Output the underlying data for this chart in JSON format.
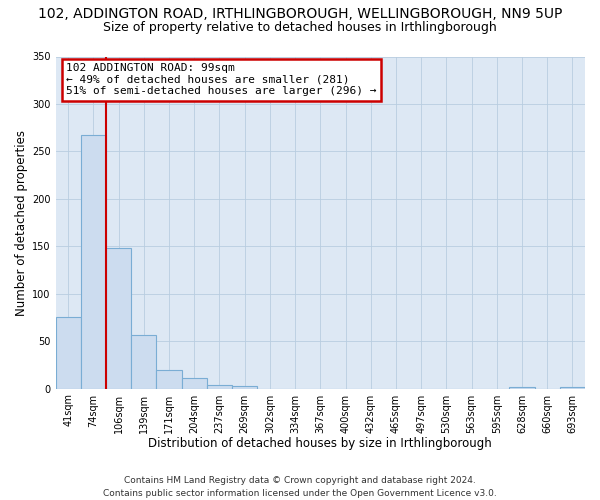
{
  "title": "102, ADDINGTON ROAD, IRTHLINGBOROUGH, WELLINGBOROUGH, NN9 5UP",
  "subtitle": "Size of property relative to detached houses in Irthlingborough",
  "xlabel": "Distribution of detached houses by size in Irthlingborough",
  "ylabel": "Number of detached properties",
  "bar_labels": [
    "41sqm",
    "74sqm",
    "106sqm",
    "139sqm",
    "171sqm",
    "204sqm",
    "237sqm",
    "269sqm",
    "302sqm",
    "334sqm",
    "367sqm",
    "400sqm",
    "432sqm",
    "465sqm",
    "497sqm",
    "530sqm",
    "563sqm",
    "595sqm",
    "628sqm",
    "660sqm",
    "693sqm"
  ],
  "bar_values": [
    75,
    267,
    148,
    57,
    20,
    11,
    4,
    3,
    0,
    0,
    0,
    0,
    0,
    0,
    0,
    0,
    0,
    0,
    2,
    0,
    2
  ],
  "bar_color": "#ccdcef",
  "bar_edge_color": "#7aadd4",
  "ylim": [
    0,
    350
  ],
  "yticks": [
    0,
    50,
    100,
    150,
    200,
    250,
    300,
    350
  ],
  "red_line_index": 2,
  "annotation_title": "102 ADDINGTON ROAD: 99sqm",
  "annotation_line1": "← 49% of detached houses are smaller (281)",
  "annotation_line2": "51% of semi-detached houses are larger (296) →",
  "annotation_box_color": "#ffffff",
  "annotation_box_edge_color": "#cc0000",
  "footer_line1": "Contains HM Land Registry data © Crown copyright and database right 2024.",
  "footer_line2": "Contains public sector information licensed under the Open Government Licence v3.0.",
  "plot_bg_color": "#dde8f4",
  "fig_bg_color": "#ffffff",
  "grid_color": "#b8cde0",
  "title_fontsize": 10,
  "subtitle_fontsize": 9,
  "axis_label_fontsize": 8.5,
  "tick_fontsize": 7,
  "annotation_fontsize": 8,
  "footer_fontsize": 6.5
}
